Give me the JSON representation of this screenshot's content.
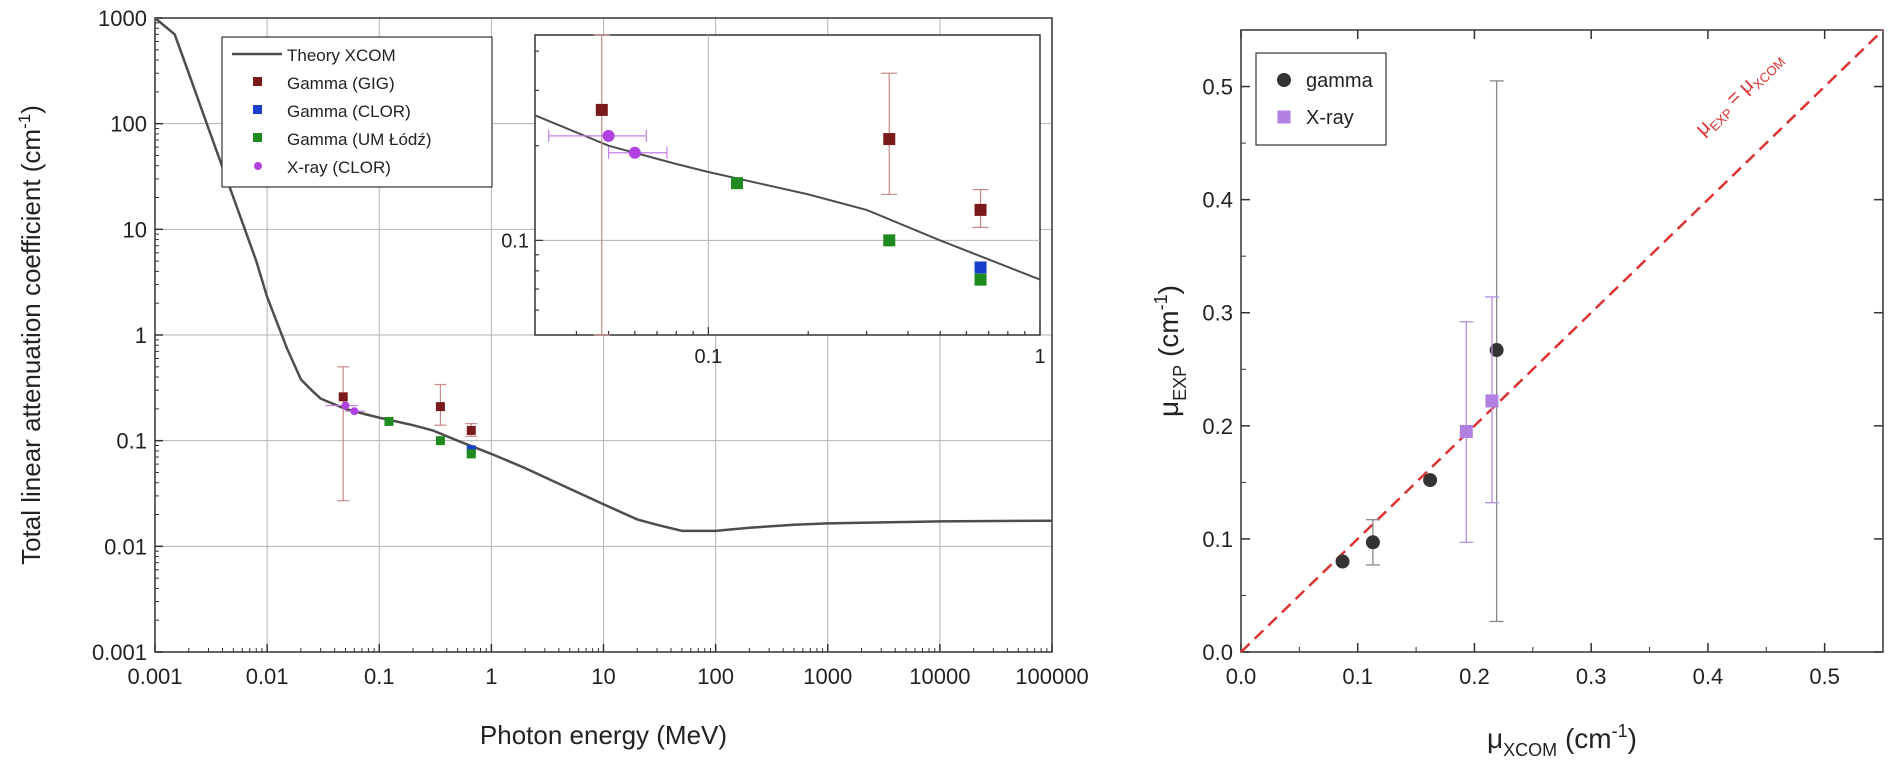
{
  "colors": {
    "theory": "#4d4d4d",
    "gamma_gig": "#7a1a1a",
    "gamma_clor": "#1a3ecc",
    "gamma_um": "#1f8a1f",
    "xray_clor": "#b040e0",
    "gamma_right": "#333333",
    "xray_right": "#b07fe0",
    "identity": "#dd3333",
    "grid": "#b3b3b3"
  },
  "chart_data": [
    {
      "type": "line",
      "xlabel": "Photon energy (MeV)",
      "ylabel": "Total linear attenuation coefficient (cm",
      "ylabel_sup": "-1",
      "ylabel_end": ")",
      "x_scale": "log",
      "y_scale": "log",
      "xlim": [
        0.001,
        100000
      ],
      "ylim": [
        0.001,
        1000
      ],
      "grid": true,
      "legend_position": "top-left",
      "x_tick_labels": [
        "0.001",
        "0.01",
        "0.1",
        "1",
        "10",
        "100",
        "1000",
        "10000",
        "100000"
      ],
      "y_tick_labels": [
        "0.001",
        "0.01",
        "0.1",
        "1",
        "10",
        "100",
        "1000"
      ],
      "legend": [
        "Theory XCOM",
        "Gamma (GIG)",
        "Gamma (CLOR)",
        "Gamma (UM Łódź)",
        "X-ray (CLOR)"
      ],
      "theory": {
        "x": [
          0.001,
          0.0015,
          0.002,
          0.003,
          0.005,
          0.008,
          0.01,
          0.015,
          0.02,
          0.025,
          0.03,
          0.05,
          0.08,
          0.1,
          0.2,
          0.3,
          0.5,
          1,
          2,
          5,
          10,
          20,
          30,
          50,
          100,
          200,
          500,
          1000,
          5000,
          10000,
          100000
        ],
        "y": [
          1300,
          700,
          300,
          90,
          20,
          5,
          2.3,
          0.75,
          0.38,
          0.3,
          0.25,
          0.2,
          0.175,
          0.165,
          0.14,
          0.125,
          0.1,
          0.075,
          0.055,
          0.035,
          0.025,
          0.018,
          0.016,
          0.014,
          0.014,
          0.015,
          0.016,
          0.0165,
          0.017,
          0.0172,
          0.0175
        ]
      },
      "series": [
        {
          "name": "Gamma (GIG)",
          "points": [
            {
              "x": 0.0477,
              "y": 0.26,
              "ylo": 0.027,
              "yhi": 0.5
            },
            {
              "x": 0.3511,
              "y": 0.21,
              "ylo": 0.14,
              "yhi": 0.34
            },
            {
              "x": 0.6617,
              "y": 0.125,
              "ylo": 0.11,
              "yhi": 0.145
            }
          ]
        },
        {
          "name": "Gamma (CLOR)",
          "points": [
            {
              "x": 0.6617,
              "y": 0.082
            }
          ]
        },
        {
          "name": "Gamma (UM Łódź)",
          "points": [
            {
              "x": 0.122,
              "y": 0.152
            },
            {
              "x": 0.3511,
              "y": 0.1
            },
            {
              "x": 0.6617,
              "y": 0.075
            }
          ]
        },
        {
          "name": "X-ray (CLOR)",
          "points": [
            {
              "x": 0.05,
              "y": 0.215,
              "xlo": 0.033,
              "xhi": 0.065
            },
            {
              "x": 0.06,
              "y": 0.19,
              "xlo": 0.05,
              "xhi": 0.075
            }
          ]
        }
      ]
    },
    {
      "type": "line",
      "role": "inset",
      "x_scale": "log",
      "y_scale": "log",
      "xlim": [
        0.03,
        1
      ],
      "ylim": [
        0.05,
        0.45
      ],
      "x_tick_labels": [
        "0.1",
        "1"
      ],
      "y_tick_labels": [
        "0.1"
      ],
      "grid": true
    },
    {
      "type": "scatter",
      "xlabel": "μ",
      "xlabel_sub": "XCOM",
      "xlabel_end": " (cm",
      "xlabel_sup": "-1",
      "xlabel_close": ")",
      "ylabel": "μ",
      "ylabel_sub": "EXP",
      "ylabel_end": " (cm",
      "ylabel_sup": "-1",
      "ylabel_close": ")",
      "xlim": [
        0,
        0.55
      ],
      "ylim": [
        0,
        0.55
      ],
      "x_tick_labels": [
        "0.0",
        "0.1",
        "0.2",
        "0.3",
        "0.4",
        "0.5"
      ],
      "y_tick_labels": [
        "0.0",
        "0.1",
        "0.2",
        "0.3",
        "0.4",
        "0.5"
      ],
      "grid": false,
      "legend_position": "top-left",
      "legend": [
        "gamma",
        "X-ray"
      ],
      "identity_line_label": {
        "main": "μ",
        "sub1": "EXP",
        "mid": " = μ",
        "sub2": "XCOM"
      },
      "series": [
        {
          "name": "gamma",
          "points": [
            {
              "x": 0.087,
              "y": 0.08
            },
            {
              "x": 0.113,
              "y": 0.097,
              "ylo": 0.077,
              "yhi": 0.117
            },
            {
              "x": 0.162,
              "y": 0.152
            },
            {
              "x": 0.219,
              "y": 0.267,
              "ylo": 0.027,
              "yhi": 0.505
            }
          ]
        },
        {
          "name": "X-ray",
          "points": [
            {
              "x": 0.193,
              "y": 0.195,
              "ylo": 0.097,
              "yhi": 0.292
            },
            {
              "x": 0.215,
              "y": 0.222,
              "ylo": 0.132,
              "yhi": 0.314
            }
          ]
        }
      ]
    }
  ]
}
